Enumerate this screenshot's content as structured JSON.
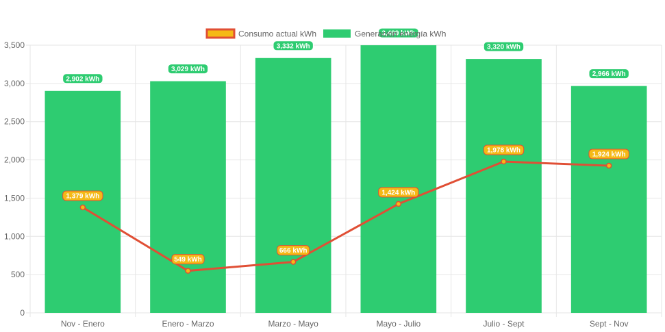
{
  "chart_data": {
    "type": "bar",
    "categories": [
      "Nov - Enero",
      "Enero - Marzo",
      "Marzo - Mayo",
      "Mayo - Julio",
      "Julio - Sept",
      "Sept - Nov"
    ],
    "series": [
      {
        "name": "Consumo actual kWh",
        "type": "line",
        "values": [
          1379,
          549,
          666,
          1424,
          1978,
          1924
        ],
        "labels": [
          "1,379 kWh",
          "549 kWh",
          "666 kWh",
          "1,424 kWh",
          "1,978 kWh",
          "1,924 kWh"
        ],
        "line_color": "#e04f35",
        "fill_color": "#f5b916"
      },
      {
        "name": "Generación energía kWh",
        "type": "bar",
        "values": [
          2902,
          3029,
          3332,
          3499,
          3320,
          2966
        ],
        "labels": [
          "2,902 kWh",
          "3,029 kWh",
          "3,332 kWh",
          "3,499 kWh",
          "3,320 kWh",
          "2,966 kWh"
        ],
        "fill_color": "#2ecc71"
      }
    ],
    "ylim": [
      0,
      3500
    ],
    "yticks": [
      0,
      500,
      1000,
      1500,
      2000,
      2500,
      3000,
      3500
    ],
    "ytick_labels": [
      "0",
      "500",
      "1,000",
      "1,500",
      "2,000",
      "2,500",
      "3,000",
      "3,500"
    ],
    "grid": true,
    "legend_position": "top"
  }
}
